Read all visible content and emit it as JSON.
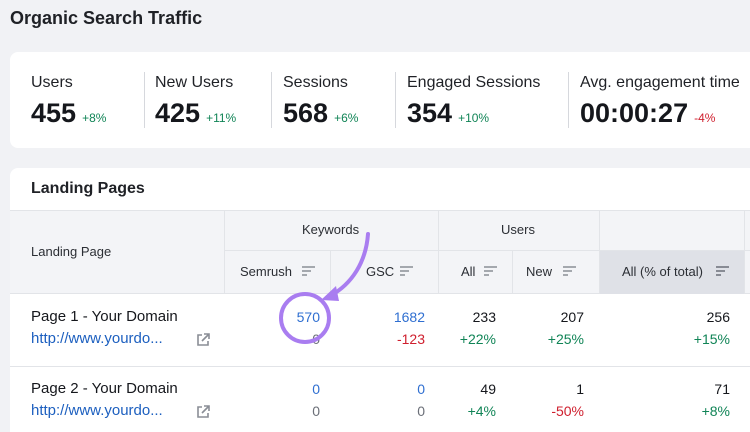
{
  "page": {
    "title": "Organic Search Traffic"
  },
  "metrics": [
    {
      "label": "Users",
      "value": "455",
      "delta": "+8%",
      "trend": "up"
    },
    {
      "label": "New Users",
      "value": "425",
      "delta": "+11%",
      "trend": "up"
    },
    {
      "label": "Sessions",
      "value": "568",
      "delta": "+6%",
      "trend": "up"
    },
    {
      "label": "Engaged Sessions",
      "value": "354",
      "delta": "+10%",
      "trend": "up"
    },
    {
      "label": "Avg. engagement time",
      "value": "00:00:27",
      "delta": "-4%",
      "trend": "down"
    }
  ],
  "landing_pages": {
    "title": "Landing Pages",
    "headers": {
      "landing_page": "Landing Page",
      "keywords_group": "Keywords",
      "users_group": "Users",
      "semrush": "Semrush",
      "gsc": "GSC",
      "all": "All",
      "new": "New",
      "all_pct": "All (% of total)"
    },
    "rows": [
      {
        "name": "Page 1 - Your Domain",
        "url": "http://www.yourdo...",
        "semrush": "570",
        "semrush_sub": "0",
        "gsc": "1682",
        "gsc_sub": "-123",
        "users_all": "233",
        "users_all_delta": "+22%",
        "users_new": "207",
        "users_new_delta": "+25%",
        "all_pct": "256",
        "all_pct_delta": "+15%"
      },
      {
        "name": "Page 2 - Your Domain",
        "url": "http://www.yourdo...",
        "semrush": "0",
        "semrush_sub": "0",
        "gsc": "0",
        "gsc_sub": "0",
        "users_all": "49",
        "users_all_delta": "+4%",
        "users_new": "1",
        "users_new_delta": "-50%",
        "all_pct": "71",
        "all_pct_delta": "+8%"
      }
    ]
  },
  "colors": {
    "positive": "#108456",
    "negative": "#cf1f2e",
    "link": "#2f6fd1",
    "annotation": "#a97df0"
  },
  "icons": [
    "sort-icon",
    "external-link-icon"
  ]
}
